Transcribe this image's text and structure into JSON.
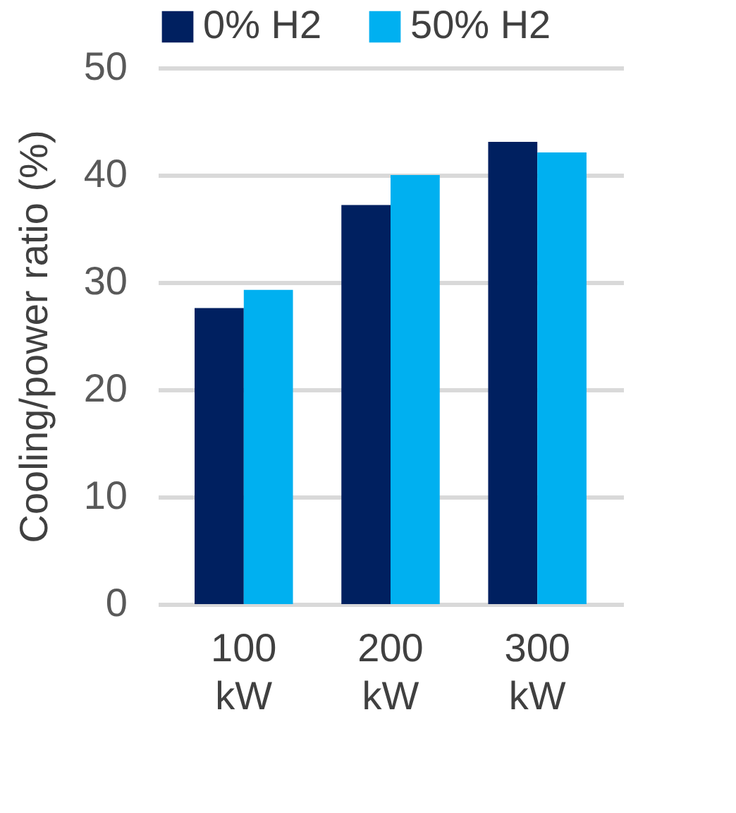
{
  "chart_data": {
    "type": "bar",
    "ylabel": "Cooling/power ratio (%)",
    "categories": [
      "100 kW",
      "200 kW",
      "300 kW"
    ],
    "series": [
      {
        "name": "0% H2",
        "color": "#002060",
        "values": [
          27.6,
          37.2,
          43.1
        ]
      },
      {
        "name": "50% H2",
        "color": "#00b0f0",
        "values": [
          29.3,
          40.0,
          42.1
        ]
      }
    ],
    "ylim": [
      0,
      50
    ],
    "yticks": [
      0,
      10,
      20,
      30,
      40,
      50
    ],
    "grid": "y",
    "legend": "top"
  }
}
